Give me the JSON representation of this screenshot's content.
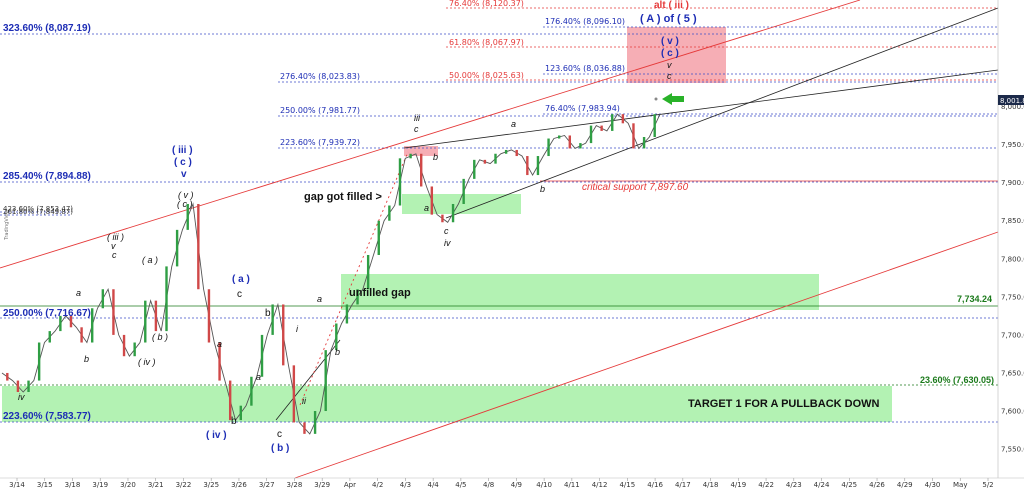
{
  "chart_data": {
    "type": "line",
    "symbol": "",
    "ylim": [
      7512,
      8140
    ],
    "y_ticks": [
      "7,550.00",
      "7,600.00",
      "7,650.00",
      "7,700.00",
      "7,750.00",
      "7,800.00",
      "7,850.00",
      "7,900.00",
      "7,950.00",
      "8,000.00"
    ],
    "x_ticks": [
      "3/14",
      "3/15",
      "3/18",
      "3/19",
      "3/20",
      "3/21",
      "3/22",
      "3/25",
      "3/26",
      "3/27",
      "3/28",
      "3/29",
      "Apr",
      "4/2",
      "4/3",
      "4/4",
      "4/5",
      "4/8",
      "4/9",
      "4/10",
      "4/11",
      "4/12",
      "4/15",
      "4/16",
      "4/17",
      "4/18",
      "4/19",
      "4/22",
      "4/23",
      "4/24",
      "4/25",
      "4/26",
      "4/29",
      "4/30",
      "May",
      "5/2"
    ],
    "series": [
      {
        "name": "",
        "values": [
          7650,
          7640,
          7625,
          7640,
          7690,
          7705,
          7725,
          7710,
          7690,
          7735,
          7760,
          7700,
          7672,
          7690,
          7745,
          7705,
          7790,
          7838,
          7872,
          7760,
          7690,
          7640,
          7588,
          7607,
          7645,
          7700,
          7740,
          7660,
          7585,
          7570,
          7600,
          7680,
          7715,
          7740,
          7760,
          7805,
          7850,
          7870,
          7932,
          7938,
          7895,
          7858,
          7848,
          7872,
          7905,
          7930,
          7925,
          7938,
          7943,
          7935,
          7910,
          7935,
          7958,
          7962,
          7945,
          7952,
          7975,
          7968,
          7990,
          7978,
          7945,
          7960,
          7990
        ]
      }
    ],
    "price_marker": "8,001.85",
    "fib_levels": [
      {
        "label": "323.60% (8,087.19)",
        "value": 8087.19,
        "color": "#1d2db5"
      },
      {
        "label": "285.40% (7,894.88)",
        "value": 7894.88,
        "color": "#1d2db5"
      },
      {
        "label": "250.00% (7,716.67)",
        "value": 7716.67,
        "color": "#1d2db5"
      },
      {
        "label": "223.60% (7,583.77)",
        "value": 7583.77,
        "color": "#1d2db5"
      },
      {
        "label": "276.40% (8,023.83)",
        "value": 8023.83,
        "color": "#1d2db5"
      },
      {
        "label": "250.00% (7,981.77)",
        "value": 7981.77,
        "color": "#1d2db5"
      },
      {
        "label": "223.60% (7,939.72)",
        "value": 7939.72,
        "color": "#1d2db5"
      },
      {
        "label": "176.40% (8,096.10)",
        "value": 8096.1,
        "color": "#1d2db5"
      },
      {
        "label": "123.60% (8,036.88)",
        "value": 8036.88,
        "color": "#1d2db5"
      },
      {
        "label": "76.40% (7,983.94)",
        "value": 7983.94,
        "color": "#1d2db5"
      },
      {
        "label": "76.40% (8,120.37)",
        "value": 8120.37,
        "color": "#e53a3a"
      },
      {
        "label": "61.80% (8,067.97)",
        "value": 8067.97,
        "color": "#e53a3a"
      },
      {
        "label": "50.00% (8,025.63)",
        "value": 8025.63,
        "color": "#e53a3a"
      },
      {
        "label": "23.60% (7,630.05)",
        "value": 7630.05,
        "color": "#1b7a1b"
      }
    ],
    "overlap_labels": [
      "423.60% (7,853.47)",
      "261.80% (7,849.87)"
    ],
    "annotations": [
      "gap got filled >",
      "unfilled gap",
      "7,734.24",
      "TARGET 1 FOR A PULLBACK DOWN",
      "critical support 7,897.60",
      "alt ( iii )",
      "( A ) of ( 5 )"
    ],
    "wave_labels": [
      "iv",
      "b",
      "a",
      "( iv )",
      "( b )",
      "( a )",
      "v",
      "( iii )",
      "c",
      "( c )",
      "( v )",
      "( iii )",
      "v",
      "( c )",
      "( a )",
      "c",
      "a",
      "a",
      "b",
      "( iv )",
      "b",
      "c",
      "( b )",
      "i",
      "ii",
      "b",
      "a",
      "iii",
      "c",
      "b",
      "a",
      "c",
      "iv",
      "a",
      "b",
      "( v )",
      "( c )",
      "v",
      "c"
    ],
    "grid": false,
    "legend": "none"
  }
}
